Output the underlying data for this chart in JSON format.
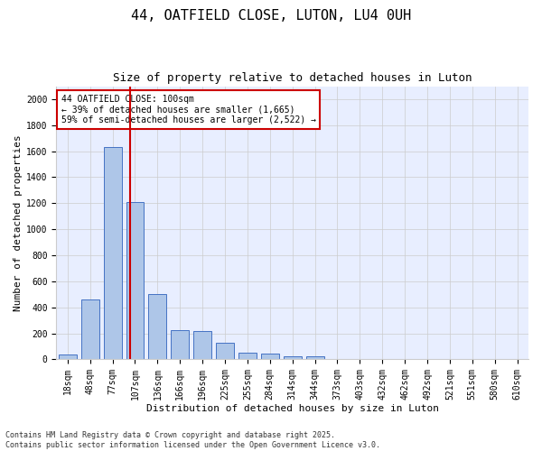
{
  "title": "44, OATFIELD CLOSE, LUTON, LU4 0UH",
  "subtitle": "Size of property relative to detached houses in Luton",
  "xlabel": "Distribution of detached houses by size in Luton",
  "ylabel": "Number of detached properties",
  "categories": [
    "18sqm",
    "48sqm",
    "77sqm",
    "107sqm",
    "136sqm",
    "166sqm",
    "196sqm",
    "225sqm",
    "255sqm",
    "284sqm",
    "314sqm",
    "344sqm",
    "373sqm",
    "403sqm",
    "432sqm",
    "462sqm",
    "492sqm",
    "521sqm",
    "551sqm",
    "580sqm",
    "610sqm"
  ],
  "values": [
    35,
    460,
    1630,
    1210,
    505,
    225,
    220,
    130,
    50,
    45,
    25,
    20,
    0,
    0,
    0,
    0,
    0,
    0,
    0,
    0,
    0
  ],
  "bar_color": "#aec6e8",
  "bar_edge_color": "#4472c4",
  "vline_x": 2.77,
  "vline_color": "#cc0000",
  "annotation_text": "44 OATFIELD CLOSE: 100sqm\n← 39% of detached houses are smaller (1,665)\n59% of semi-detached houses are larger (2,522) →",
  "annotation_box_color": "#cc0000",
  "ylim": [
    0,
    2100
  ],
  "yticks": [
    0,
    200,
    400,
    600,
    800,
    1000,
    1200,
    1400,
    1600,
    1800,
    2000
  ],
  "grid_color": "#cccccc",
  "bg_color": "#e8eeff",
  "footer": "Contains HM Land Registry data © Crown copyright and database right 2025.\nContains public sector information licensed under the Open Government Licence v3.0.",
  "title_fontsize": 11,
  "subtitle_fontsize": 9,
  "axis_label_fontsize": 8,
  "tick_fontsize": 7,
  "annotation_fontsize": 7,
  "footer_fontsize": 6
}
